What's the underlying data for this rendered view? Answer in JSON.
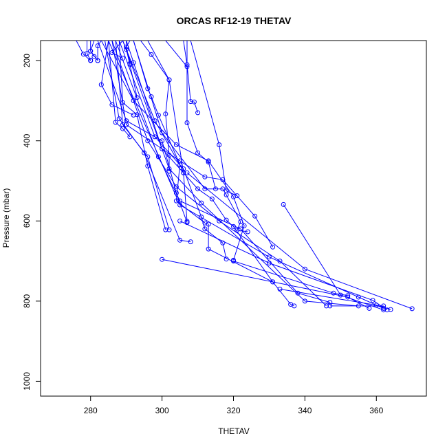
{
  "chart_data": {
    "type": "line",
    "title": "ORCAS RF12-19 THETAV",
    "xlabel": "THETAV",
    "ylabel": "Pressure (mbar)",
    "xlim": [
      266,
      374
    ],
    "ylim": [
      1037,
      150
    ],
    "y_reversed": true,
    "x_ticks": [
      280,
      300,
      320,
      340,
      360
    ],
    "y_ticks": [
      200,
      400,
      600,
      800,
      1000
    ],
    "grid": false,
    "legend": "none",
    "line_color": "#0000ff",
    "marker": "open-circle",
    "series": [
      {
        "points": [
          [
            281,
            150
          ],
          [
            280,
            176
          ],
          [
            282,
            200
          ]
        ]
      },
      {
        "points": [
          [
            276,
            150
          ],
          [
            278,
            184
          ],
          [
            280,
            200
          ]
        ]
      },
      {
        "points": [
          [
            280,
            150
          ],
          [
            280,
            176
          ],
          [
            281,
            190
          ]
        ]
      },
      {
        "points": [
          [
            279,
            150
          ],
          [
            279,
            182
          ],
          [
            280,
            199
          ]
        ]
      },
      {
        "points": [
          [
            283,
            150
          ],
          [
            282,
            163
          ],
          [
            282,
            200
          ]
        ]
      },
      {
        "points": [
          [
            285,
            150
          ],
          [
            283,
            260
          ],
          [
            286,
            310
          ],
          [
            292,
            336
          ]
        ]
      },
      {
        "points": [
          [
            289,
            150
          ],
          [
            286,
            180
          ],
          [
            289,
            194
          ]
        ]
      },
      {
        "points": [
          [
            290,
            150
          ],
          [
            290,
            172
          ],
          [
            291,
            210
          ],
          [
            293,
            292
          ]
        ]
      },
      {
        "points": [
          [
            291,
            150
          ],
          [
            290,
            166
          ],
          [
            291,
            207
          ],
          [
            292,
            205
          ]
        ]
      },
      {
        "points": [
          [
            294,
            150
          ],
          [
            297,
            185
          ],
          [
            302,
            248
          ],
          [
            301,
            333
          ],
          [
            302,
            436
          ],
          [
            302,
            476
          ]
        ]
      },
      {
        "points": [
          [
            296,
            150
          ],
          [
            302,
            248
          ],
          [
            306,
            480
          ]
        ]
      },
      {
        "points": [
          [
            301,
            150
          ],
          [
            307,
            215
          ]
        ]
      },
      {
        "points": [
          [
            306,
            150
          ],
          [
            307,
            210
          ],
          [
            308,
            302
          ],
          [
            309,
            303
          ],
          [
            310,
            330
          ]
        ]
      },
      {
        "points": [
          [
            307,
            150
          ],
          [
            307,
            355
          ],
          [
            310,
            430
          ],
          [
            313,
            453
          ],
          [
            315,
            520
          ]
        ]
      },
      {
        "points": [
          [
            308,
            150
          ],
          [
            316,
            410
          ],
          [
            318,
            525
          ],
          [
            321,
            537
          ]
        ]
      },
      {
        "points": [
          [
            292,
            150
          ],
          [
            296,
            270
          ],
          [
            297,
            290
          ],
          [
            299,
            336
          ],
          [
            306,
            480
          ],
          [
            307,
            601
          ]
        ]
      },
      {
        "points": [
          [
            285,
            150
          ],
          [
            287,
            354
          ],
          [
            289,
            370
          ],
          [
            291,
            390
          ]
        ]
      },
      {
        "points": [
          [
            288,
            150
          ],
          [
            289,
            305
          ],
          [
            293,
            335
          ],
          [
            296,
            463
          ],
          [
            301,
            622
          ]
        ]
      },
      {
        "points": [
          [
            282,
            150
          ],
          [
            290,
            350
          ],
          [
            300,
            400
          ],
          [
            304,
            530
          ],
          [
            307,
            604
          ]
        ]
      },
      {
        "points": [
          [
            287,
            150
          ],
          [
            289,
            360
          ],
          [
            296,
            440
          ],
          [
            302,
            622
          ]
        ]
      },
      {
        "points": [
          [
            284,
            150
          ],
          [
            288,
            345
          ],
          [
            295,
            430
          ],
          [
            305,
            648
          ],
          [
            308,
            652
          ]
        ]
      },
      {
        "points": [
          [
            286,
            150
          ],
          [
            290,
            360
          ],
          [
            305,
            450
          ],
          [
            312,
            490
          ],
          [
            317,
            497
          ],
          [
            326,
            588
          ],
          [
            331,
            665
          ]
        ]
      },
      {
        "points": [
          [
            283,
            150
          ],
          [
            292,
            300
          ],
          [
            304,
            410
          ],
          [
            313,
            450
          ],
          [
            320,
            540
          ],
          [
            323,
            612
          ],
          [
            320,
            698
          ]
        ]
      },
      {
        "points": [
          [
            289,
            150
          ],
          [
            298,
            350
          ],
          [
            305,
            460
          ],
          [
            304,
            550
          ],
          [
            312,
            605
          ],
          [
            313,
            608
          ],
          [
            313,
            670
          ],
          [
            331,
            752
          ]
        ]
      },
      {
        "points": [
          [
            292,
            150
          ],
          [
            300,
            380
          ],
          [
            312,
            520
          ],
          [
            317,
            520
          ],
          [
            318,
            535
          ],
          [
            322,
            602
          ],
          [
            321,
            623
          ],
          [
            324,
            627
          ]
        ]
      },
      {
        "points": [
          [
            288,
            150
          ],
          [
            298,
            390
          ],
          [
            306,
            470
          ],
          [
            311,
            590
          ],
          [
            312,
            620
          ],
          [
            317,
            655
          ],
          [
            318,
            695
          ]
        ]
      },
      {
        "points": [
          [
            290,
            150
          ],
          [
            300,
            420
          ],
          [
            310,
            520
          ],
          [
            314,
            545
          ],
          [
            318,
            598
          ],
          [
            320,
            614
          ],
          [
            331,
            752
          ],
          [
            336,
            808
          ],
          [
            337,
            812
          ]
        ]
      },
      {
        "points": [
          [
            286,
            150
          ],
          [
            296,
            400
          ],
          [
            304,
            515
          ],
          [
            316,
            600
          ],
          [
            333,
            700
          ],
          [
            346,
            812
          ]
        ]
      },
      {
        "points": [
          [
            287,
            150
          ],
          [
            299,
            440
          ],
          [
            305,
            550
          ],
          [
            322,
            620
          ],
          [
            338,
            780
          ],
          [
            347,
            803
          ]
        ]
      },
      {
        "points": [
          [
            289,
            150
          ],
          [
            302,
            470
          ],
          [
            311,
            555
          ],
          [
            340,
            800
          ],
          [
            355,
            812
          ]
        ]
      },
      {
        "points": [
          [
            285,
            150
          ],
          [
            305,
            560
          ],
          [
            330,
            690
          ],
          [
            355,
            790
          ],
          [
            362,
            818
          ]
        ]
      },
      {
        "points": [
          [
            334,
            559
          ],
          [
            350,
            785
          ],
          [
            362,
            822
          ]
        ]
      },
      {
        "points": [
          [
            333,
            770
          ],
          [
            360,
            810
          ],
          [
            364,
            821
          ]
        ]
      },
      {
        "points": [
          [
            300,
            696
          ],
          [
            352,
            790
          ],
          [
            358,
            818
          ]
        ]
      },
      {
        "points": [
          [
            307,
            480
          ],
          [
            340,
            720
          ],
          [
            370,
            819
          ]
        ]
      },
      {
        "points": [
          [
            305,
            600
          ],
          [
            330,
            705
          ],
          [
            359,
            798
          ],
          [
            363,
            822
          ]
        ]
      },
      {
        "points": [
          [
            347,
            812
          ],
          [
            362,
            812
          ]
        ]
      },
      {
        "points": [
          [
            320,
            700
          ],
          [
            348,
            780
          ],
          [
            352,
            786
          ]
        ]
      }
    ]
  }
}
